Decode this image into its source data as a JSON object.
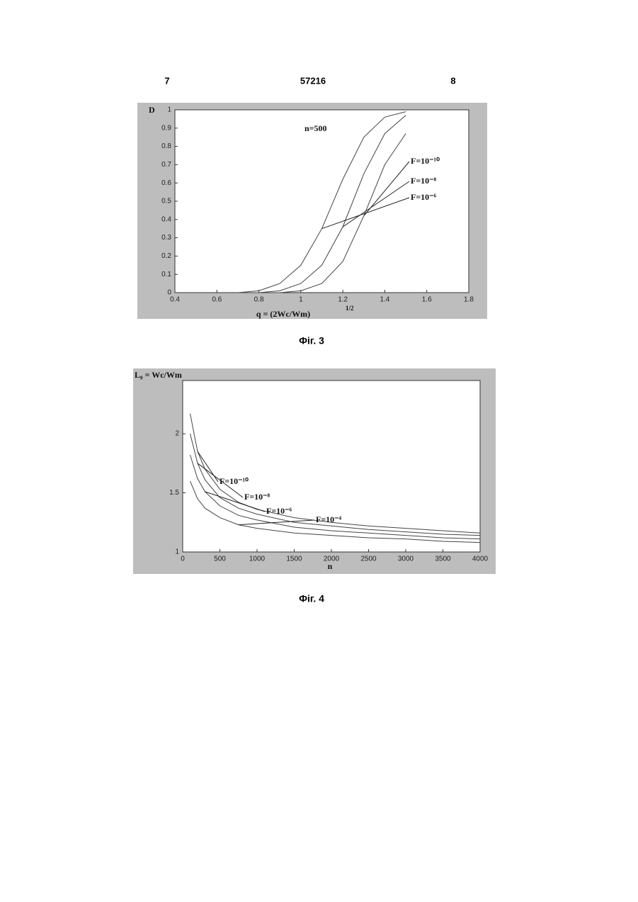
{
  "header": {
    "left": "7",
    "center": "57216",
    "right": "8"
  },
  "chart_data": [
    {
      "type": "line",
      "caption": "Фіг. 3",
      "ylabel": "D",
      "annotation": "n=500",
      "xlabel": "q = (2Wc/Wm)",
      "xlabel_exponent": "1/2",
      "x": [
        0.7,
        0.8,
        0.9,
        1.0,
        1.1,
        1.2,
        1.3,
        1.4,
        1.5
      ],
      "series": [
        {
          "name": "F=10⁻¹⁰",
          "color": "#444444",
          "values": [
            0,
            0,
            0,
            0.01,
            0.05,
            0.17,
            0.42,
            0.7,
            0.87
          ]
        },
        {
          "name": "F=10⁻⁸",
          "color": "#444444",
          "values": [
            0,
            0,
            0.01,
            0.05,
            0.15,
            0.36,
            0.65,
            0.87,
            0.97
          ]
        },
        {
          "name": "F=10⁻⁶",
          "color": "#444444",
          "values": [
            0,
            0.01,
            0.05,
            0.15,
            0.35,
            0.62,
            0.85,
            0.96,
            0.99
          ]
        }
      ],
      "xlim": [
        0.4,
        1.8
      ],
      "xticks": [
        0.4,
        0.6,
        0.8,
        1,
        1.2,
        1.4,
        1.6,
        1.8
      ],
      "ylim": [
        0,
        1
      ],
      "yticks": [
        0,
        0.1,
        0.2,
        0.3,
        0.4,
        0.5,
        0.6,
        0.7,
        0.8,
        0.9,
        1
      ]
    },
    {
      "type": "line",
      "caption": "Фіг. 4",
      "ylabel": "L₀ = Wc/Wm",
      "xlabel": "n",
      "x": [
        100,
        200,
        300,
        500,
        750,
        1000,
        1500,
        2000,
        2500,
        3000,
        3500,
        4000
      ],
      "series": [
        {
          "name": "F=10⁻¹⁰",
          "color": "#444444",
          "values": [
            2.17,
            1.85,
            1.7,
            1.53,
            1.42,
            1.36,
            1.29,
            1.25,
            1.22,
            1.2,
            1.18,
            1.16
          ]
        },
        {
          "name": "F=10⁻⁸",
          "color": "#444444",
          "values": [
            2.0,
            1.75,
            1.61,
            1.46,
            1.37,
            1.32,
            1.25,
            1.22,
            1.19,
            1.17,
            1.15,
            1.14
          ]
        },
        {
          "name": "F=10⁻⁶",
          "color": "#444444",
          "values": [
            1.82,
            1.62,
            1.51,
            1.39,
            1.31,
            1.27,
            1.21,
            1.18,
            1.16,
            1.14,
            1.12,
            1.11
          ]
        },
        {
          "name": "F=10⁻⁴",
          "color": "#444444",
          "values": [
            1.6,
            1.45,
            1.37,
            1.29,
            1.23,
            1.2,
            1.16,
            1.14,
            1.12,
            1.11,
            1.09,
            1.08
          ]
        }
      ],
      "xlim": [
        0,
        4000
      ],
      "xticks": [
        0,
        500,
        1000,
        1500,
        2000,
        2500,
        3000,
        3500,
        4000
      ],
      "ylim": [
        1,
        2.45
      ],
      "yticks": [
        1,
        1.5,
        2
      ]
    }
  ]
}
